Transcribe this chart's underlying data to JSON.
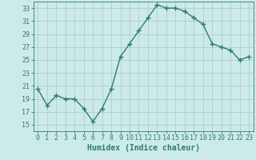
{
  "x": [
    0,
    1,
    2,
    3,
    4,
    5,
    6,
    7,
    8,
    9,
    10,
    11,
    12,
    13,
    14,
    15,
    16,
    17,
    18,
    19,
    20,
    21,
    22,
    23
  ],
  "y": [
    20.5,
    18.0,
    19.5,
    19.0,
    19.0,
    17.5,
    15.5,
    17.5,
    20.5,
    25.5,
    27.5,
    29.5,
    31.5,
    33.5,
    33.0,
    33.0,
    32.5,
    31.5,
    30.5,
    27.5,
    27.0,
    26.5,
    25.0,
    25.5
  ],
  "line_color": "#2e7d6e",
  "marker": "+",
  "marker_size": 4,
  "bg_color": "#cdeaea",
  "grid_color": "#b0cccc",
  "xlabel": "Humidex (Indice chaleur)",
  "ylim": [
    14,
    34
  ],
  "xlim": [
    -0.5,
    23.5
  ],
  "yticks": [
    15,
    17,
    19,
    21,
    23,
    25,
    27,
    29,
    31,
    33
  ],
  "xticks": [
    0,
    1,
    2,
    3,
    4,
    5,
    6,
    7,
    8,
    9,
    10,
    11,
    12,
    13,
    14,
    15,
    16,
    17,
    18,
    19,
    20,
    21,
    22,
    23
  ],
  "tick_color": "#2e7d6e",
  "xlabel_fontsize": 7,
  "tick_fontsize": 6,
  "line_width": 1.0,
  "marker_edge_width": 1.0
}
